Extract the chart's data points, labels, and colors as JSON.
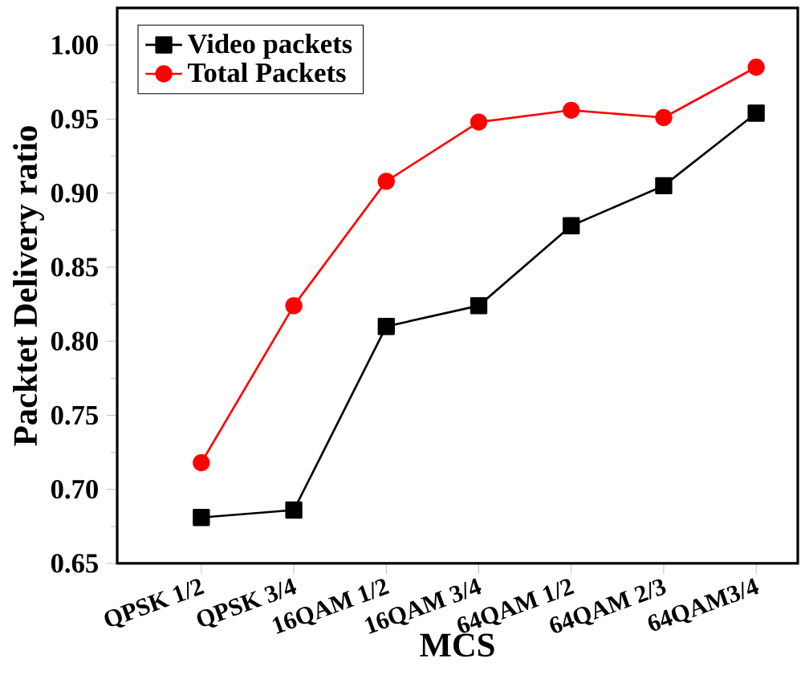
{
  "chart_data": {
    "type": "line",
    "xlabel": "MCS",
    "ylabel": "Packtet Delivery ratio",
    "categories": [
      "QPSK 1/2",
      "QPSK 3/4",
      "16QAM 1/2",
      "16QAM 3/4",
      "64QAM 1/2",
      "64QAM 2/3",
      "64QAM3/4"
    ],
    "series": [
      {
        "name": "Video packets",
        "color": "#000000",
        "marker": "square",
        "values": [
          0.681,
          0.686,
          0.81,
          0.824,
          0.878,
          0.905,
          0.954
        ]
      },
      {
        "name": "Total Packets",
        "color": "#ff0000",
        "marker": "circle",
        "values": [
          0.718,
          0.824,
          0.908,
          0.948,
          0.956,
          0.951,
          0.985
        ]
      }
    ],
    "ylim": [
      0.65,
      1.025
    ],
    "yticks": [
      0.65,
      {
        "value": 0.7,
        "label": "0.70"
      },
      0.75,
      {
        "value": 0.8,
        "label": "0.80"
      },
      0.85,
      {
        "value": 0.9,
        "label": "0.90"
      },
      0.95,
      {
        "value": 1.0,
        "label": "1.00"
      }
    ],
    "legend": "top left",
    "grid": false,
    "line_style": "solid"
  }
}
